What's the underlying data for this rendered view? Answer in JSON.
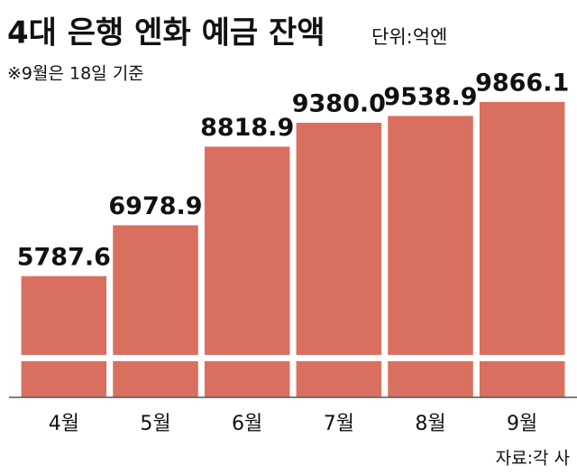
{
  "chart_data": {
    "type": "bar",
    "title": "4대 은행 엔화 예금 잔액",
    "unit": "단위:억엔",
    "note": "※9월은 18일 기준",
    "source": "자료:각 사",
    "categories": [
      "4월",
      "5월",
      "6월",
      "7월",
      "8월",
      "9월"
    ],
    "values": [
      5787.6,
      6978.9,
      8818.9,
      9380.0,
      9538.9,
      9866.1
    ],
    "value_labels": [
      "5787.6",
      "6978.9",
      "8818.9",
      "9380.0",
      "9538.9",
      "9866.1"
    ],
    "color": "#d9705f",
    "ylim": [
      2950,
      12000
    ]
  }
}
